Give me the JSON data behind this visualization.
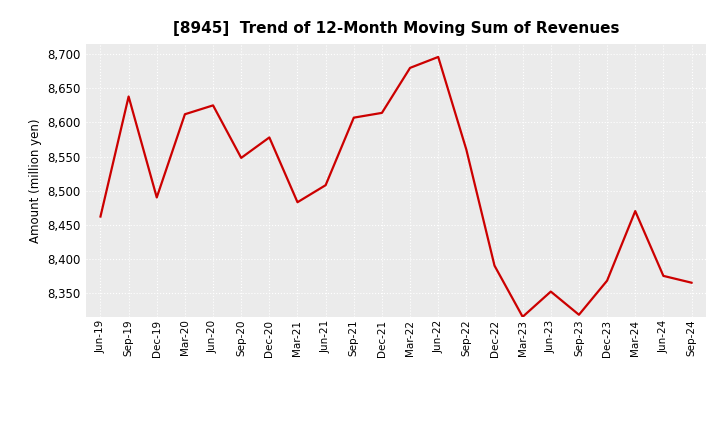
{
  "title": "[8945]  Trend of 12-Month Moving Sum of Revenues",
  "ylabel": "Amount (million yen)",
  "line_color": "#CC0000",
  "line_width": 1.6,
  "background_color": "#FFFFFF",
  "plot_bg_color": "#EBEBEB",
  "grid_color": "#FFFFFF",
  "ylim": [
    8315,
    8715
  ],
  "yticks": [
    8350,
    8400,
    8450,
    8500,
    8550,
    8600,
    8650,
    8700
  ],
  "x_labels": [
    "Jun-19",
    "Sep-19",
    "Dec-19",
    "Mar-20",
    "Jun-20",
    "Sep-20",
    "Dec-20",
    "Mar-21",
    "Jun-21",
    "Sep-21",
    "Dec-21",
    "Mar-22",
    "Jun-22",
    "Sep-22",
    "Dec-22",
    "Mar-23",
    "Jun-23",
    "Sep-23",
    "Dec-23",
    "Mar-24",
    "Jun-24",
    "Sep-24"
  ],
  "values": [
    8462,
    8638,
    8490,
    8612,
    8625,
    8548,
    8578,
    8483,
    8508,
    8607,
    8614,
    8680,
    8696,
    8560,
    8390,
    8315,
    8352,
    8318,
    8368,
    8470,
    8375,
    8365
  ]
}
